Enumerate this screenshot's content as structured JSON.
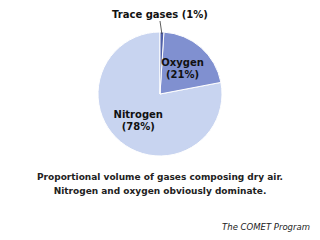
{
  "chart_data": {
    "type": "pie",
    "values": [
      78,
      21,
      1
    ],
    "value_labels": [
      "Nitrogen\n(78%)",
      "Oxygen\n(21%)",
      "Trace gases (1%)"
    ],
    "colors": [
      "#c8d4f0",
      "#8090d0",
      "#5060a8"
    ],
    "data_labels": true,
    "annotations": [
      "Proportional volume of gases composing dry air.",
      "Nitrogen and oxygen obviously dominate.",
      "The COMET Program"
    ]
  }
}
